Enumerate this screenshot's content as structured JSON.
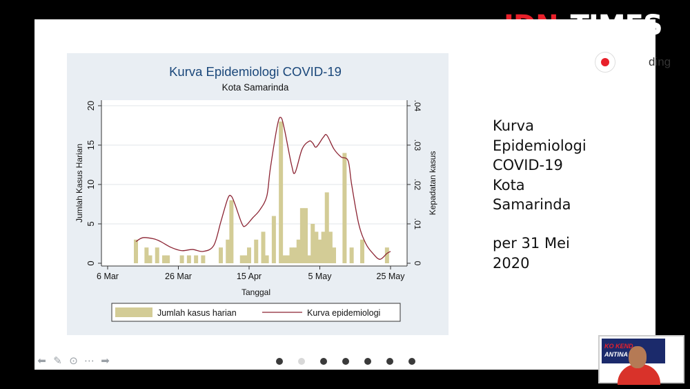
{
  "brand": {
    "logo_left": "IDN",
    "logo_right": "TIMES",
    "accent": "#e8202a"
  },
  "recording": {
    "label": "ding"
  },
  "slide": {
    "side_title": "Kurva\nEpidemiologi\nCOVID-19\nKota\nSamarinda",
    "side_date": "per 31 Mei\n2020"
  },
  "pagination": {
    "count": 7,
    "active_index": 1
  },
  "webcam": {
    "banner_top": "KO KEND",
    "banner_bottom": "ANTINA COV"
  },
  "chart_data": {
    "type": "bar",
    "title": "Kurva Epidemiologi COVID-19",
    "subtitle": "Kota Samarinda",
    "xlabel": "Tanggal",
    "ylabel": "Jumlah Kasus Harian",
    "y2label": "Kepadatan kasus",
    "ylim": [
      0,
      20
    ],
    "y2lim": [
      0,
      0.04
    ],
    "yticks": [
      "0",
      "5",
      "10",
      "15",
      "20"
    ],
    "y2ticks": [
      "0",
      ".01",
      ".02",
      ".03",
      ".04"
    ],
    "xticks": [
      {
        "day": 0,
        "label": "6 Mar"
      },
      {
        "day": 20,
        "label": "26 Mar"
      },
      {
        "day": 40,
        "label": "15 Apr"
      },
      {
        "day": 60,
        "label": "5 May"
      },
      {
        "day": 80,
        "label": "25 May"
      }
    ],
    "xlim_days": [
      0,
      82
    ],
    "grid": true,
    "legend_position": "bottom",
    "series": [
      {
        "name": "Jumlah kasus harian",
        "color": "#d3cc96",
        "bars": [
          {
            "day": 8,
            "v": 3
          },
          {
            "day": 11,
            "v": 2
          },
          {
            "day": 12,
            "v": 1
          },
          {
            "day": 14,
            "v": 2
          },
          {
            "day": 16,
            "v": 1
          },
          {
            "day": 17,
            "v": 1
          },
          {
            "day": 21,
            "v": 1
          },
          {
            "day": 23,
            "v": 1
          },
          {
            "day": 25,
            "v": 1
          },
          {
            "day": 27,
            "v": 1
          },
          {
            "day": 32,
            "v": 2
          },
          {
            "day": 34,
            "v": 3
          },
          {
            "day": 35,
            "v": 8
          },
          {
            "day": 38,
            "v": 1
          },
          {
            "day": 39,
            "v": 1
          },
          {
            "day": 40,
            "v": 2
          },
          {
            "day": 42,
            "v": 3
          },
          {
            "day": 44,
            "v": 4
          },
          {
            "day": 45,
            "v": 1
          },
          {
            "day": 47,
            "v": 6
          },
          {
            "day": 49,
            "v": 18
          },
          {
            "day": 50,
            "v": 1
          },
          {
            "day": 51,
            "v": 1
          },
          {
            "day": 52,
            "v": 2
          },
          {
            "day": 53,
            "v": 2
          },
          {
            "day": 54,
            "v": 3
          },
          {
            "day": 55,
            "v": 7
          },
          {
            "day": 56,
            "v": 7
          },
          {
            "day": 57,
            "v": 1
          },
          {
            "day": 58,
            "v": 5
          },
          {
            "day": 59,
            "v": 4
          },
          {
            "day": 60,
            "v": 3
          },
          {
            "day": 61,
            "v": 4
          },
          {
            "day": 62,
            "v": 9
          },
          {
            "day": 63,
            "v": 4
          },
          {
            "day": 64,
            "v": 2
          },
          {
            "day": 67,
            "v": 14
          },
          {
            "day": 69,
            "v": 2
          },
          {
            "day": 72,
            "v": 3
          },
          {
            "day": 79,
            "v": 2
          }
        ]
      },
      {
        "name": "Kurva epidemiologi",
        "color": "#8b2332",
        "points": [
          {
            "day": 8,
            "v": 0.0055
          },
          {
            "day": 10,
            "v": 0.0065
          },
          {
            "day": 13,
            "v": 0.0062
          },
          {
            "day": 15,
            "v": 0.0055
          },
          {
            "day": 18,
            "v": 0.004
          },
          {
            "day": 21,
            "v": 0.0032
          },
          {
            "day": 24,
            "v": 0.0035
          },
          {
            "day": 27,
            "v": 0.003
          },
          {
            "day": 30,
            "v": 0.0045
          },
          {
            "day": 32,
            "v": 0.0105
          },
          {
            "day": 34,
            "v": 0.0165
          },
          {
            "day": 35,
            "v": 0.017
          },
          {
            "day": 36,
            "v": 0.015
          },
          {
            "day": 38,
            "v": 0.01
          },
          {
            "day": 39,
            "v": 0.0095
          },
          {
            "day": 41,
            "v": 0.0115
          },
          {
            "day": 43,
            "v": 0.0135
          },
          {
            "day": 45,
            "v": 0.017
          },
          {
            "day": 46,
            "v": 0.024
          },
          {
            "day": 48,
            "v": 0.035
          },
          {
            "day": 49,
            "v": 0.037
          },
          {
            "day": 50,
            "v": 0.034
          },
          {
            "day": 52,
            "v": 0.025
          },
          {
            "day": 53,
            "v": 0.023
          },
          {
            "day": 55,
            "v": 0.029
          },
          {
            "day": 57,
            "v": 0.031
          },
          {
            "day": 58,
            "v": 0.0305
          },
          {
            "day": 59,
            "v": 0.0295
          },
          {
            "day": 61,
            "v": 0.032
          },
          {
            "day": 62,
            "v": 0.0325
          },
          {
            "day": 64,
            "v": 0.029
          },
          {
            "day": 66,
            "v": 0.027
          },
          {
            "day": 68,
            "v": 0.026
          },
          {
            "day": 69,
            "v": 0.02
          },
          {
            "day": 71,
            "v": 0.01
          },
          {
            "day": 73,
            "v": 0.005
          },
          {
            "day": 75,
            "v": 0.0025
          },
          {
            "day": 77,
            "v": 0.001
          },
          {
            "day": 79,
            "v": 0.0025
          },
          {
            "day": 80,
            "v": 0.003
          }
        ]
      }
    ]
  }
}
